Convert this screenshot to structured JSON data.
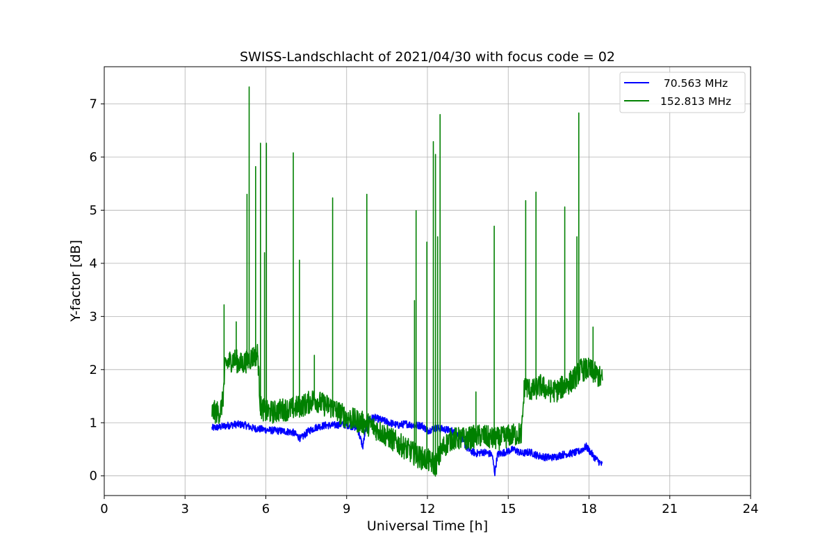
{
  "chart_data": {
    "type": "line",
    "title": "SWISS-Landschlacht of 2021/04/30 with focus code = 02",
    "xlabel": "Universal Time [h]",
    "ylabel": "Y-factor [dB]",
    "xlim": [
      0,
      24
    ],
    "ylim": [
      -0.37,
      7.7
    ],
    "xticks": [
      0,
      3,
      6,
      9,
      12,
      15,
      18,
      21,
      24
    ],
    "xtick_labels": [
      "0",
      "3",
      "6",
      "9",
      "12",
      "15",
      "18",
      "21",
      "24"
    ],
    "yticks": [
      0,
      1,
      2,
      3,
      4,
      5,
      6,
      7
    ],
    "ytick_labels": [
      "0",
      "1",
      "2",
      "3",
      "4",
      "5",
      "6",
      "7"
    ],
    "grid": true,
    "legend_position": "top-right",
    "series": [
      {
        "name": "70.563 MHz",
        "label": " 70.563 MHz",
        "color": "#0000ff",
        "x": [
          4.0,
          4.3,
          4.6,
          4.9,
          5.2,
          5.5,
          5.8,
          6.1,
          6.4,
          6.7,
          7.0,
          7.3,
          7.6,
          7.9,
          8.2,
          8.5,
          8.8,
          9.1,
          9.4,
          9.6,
          9.7,
          9.8,
          10.0,
          10.3,
          10.6,
          10.9,
          11.2,
          11.5,
          11.8,
          12.0,
          12.3,
          12.6,
          12.9,
          13.2,
          13.5,
          13.8,
          14.1,
          14.4,
          14.5,
          14.6,
          14.9,
          15.2,
          15.5,
          15.8,
          16.1,
          16.4,
          16.7,
          17.0,
          17.3,
          17.6,
          17.9,
          18.2,
          18.5
        ],
        "y": [
          0.9,
          0.92,
          0.95,
          0.97,
          0.96,
          0.9,
          0.88,
          0.86,
          0.85,
          0.84,
          0.82,
          0.7,
          0.85,
          0.92,
          0.95,
          0.95,
          0.97,
          0.95,
          0.9,
          0.55,
          0.85,
          1.05,
          1.1,
          1.05,
          1.0,
          0.95,
          0.98,
          0.95,
          0.95,
          0.85,
          0.9,
          0.88,
          0.85,
          0.75,
          0.5,
          0.42,
          0.45,
          0.4,
          0.05,
          0.4,
          0.45,
          0.5,
          0.42,
          0.45,
          0.38,
          0.35,
          0.35,
          0.4,
          0.42,
          0.45,
          0.55,
          0.35,
          0.2
        ],
        "noise": 0.07
      },
      {
        "name": "152.813 MHz",
        "label": "152.813 MHz",
        "color": "#008000",
        "x": [
          4.0,
          4.3,
          4.4,
          4.5,
          4.8,
          5.1,
          5.4,
          5.7,
          5.8,
          6.0,
          6.3,
          6.6,
          6.9,
          7.2,
          7.5,
          7.8,
          8.1,
          8.4,
          8.7,
          9.0,
          9.3,
          9.6,
          9.9,
          10.2,
          10.5,
          10.8,
          11.1,
          11.4,
          11.7,
          12.0,
          12.3,
          12.6,
          12.9,
          13.2,
          13.5,
          13.8,
          14.1,
          14.4,
          14.7,
          15.0,
          15.3,
          15.5,
          15.6,
          15.9,
          16.2,
          16.5,
          16.8,
          17.1,
          17.4,
          17.7,
          18.0,
          18.3,
          18.5
        ],
        "y": [
          1.2,
          1.2,
          1.4,
          2.1,
          2.2,
          2.1,
          2.2,
          2.3,
          1.3,
          1.2,
          1.2,
          1.25,
          1.25,
          1.3,
          1.35,
          1.45,
          1.35,
          1.3,
          1.2,
          1.1,
          1.05,
          1.0,
          0.95,
          0.85,
          0.75,
          0.65,
          0.55,
          0.45,
          0.35,
          0.3,
          0.2,
          0.55,
          0.7,
          0.7,
          0.7,
          0.75,
          0.75,
          0.7,
          0.7,
          0.75,
          0.78,
          0.8,
          1.7,
          1.6,
          1.7,
          1.6,
          1.6,
          1.7,
          1.8,
          2.0,
          2.0,
          1.9,
          1.8
        ],
        "noise": 0.22,
        "spikes": [
          {
            "x": 4.45,
            "y": 3.22
          },
          {
            "x": 4.9,
            "y": 2.9
          },
          {
            "x": 5.3,
            "y": 5.3
          },
          {
            "x": 5.38,
            "y": 7.32
          },
          {
            "x": 5.62,
            "y": 5.82
          },
          {
            "x": 5.8,
            "y": 6.26
          },
          {
            "x": 5.95,
            "y": 4.2
          },
          {
            "x": 6.02,
            "y": 6.26
          },
          {
            "x": 7.02,
            "y": 6.08
          },
          {
            "x": 7.25,
            "y": 4.06
          },
          {
            "x": 7.8,
            "y": 2.27
          },
          {
            "x": 8.48,
            "y": 5.23
          },
          {
            "x": 9.75,
            "y": 5.3
          },
          {
            "x": 11.52,
            "y": 3.3
          },
          {
            "x": 11.58,
            "y": 4.99
          },
          {
            "x": 11.98,
            "y": 4.4
          },
          {
            "x": 12.22,
            "y": 6.29
          },
          {
            "x": 12.3,
            "y": 6.05
          },
          {
            "x": 12.38,
            "y": 4.5
          },
          {
            "x": 12.47,
            "y": 6.8
          },
          {
            "x": 13.8,
            "y": 1.58
          },
          {
            "x": 14.48,
            "y": 4.7
          },
          {
            "x": 15.65,
            "y": 5.18
          },
          {
            "x": 16.03,
            "y": 5.34
          },
          {
            "x": 17.1,
            "y": 5.06
          },
          {
            "x": 17.55,
            "y": 4.5
          },
          {
            "x": 17.62,
            "y": 6.83
          },
          {
            "x": 18.15,
            "y": 2.8
          }
        ]
      }
    ]
  }
}
